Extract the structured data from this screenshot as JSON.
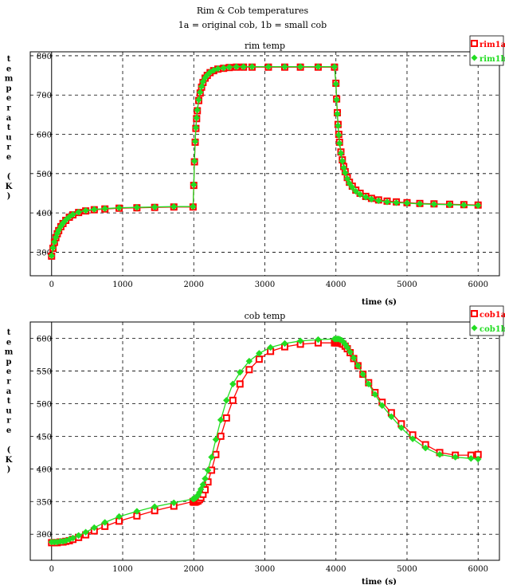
{
  "figure": {
    "title": "Rim & Cob temperatures",
    "subtitle": "1a = original cob, 1b = small cob"
  },
  "colors": {
    "series_a": "#ff0000",
    "series_b": "#22dd22",
    "grid": "#000000"
  },
  "chart_data": [
    {
      "type": "line",
      "title": "rim temp",
      "xlabel": "time (s)",
      "ylabel": "temperature (K)",
      "xlim": [
        -300,
        6300
      ],
      "ylim": [
        240,
        810
      ],
      "xticks": [
        0,
        1000,
        2000,
        3000,
        4000,
        5000,
        6000
      ],
      "yticks": [
        300,
        400,
        500,
        600,
        700,
        800
      ],
      "grid": true,
      "legend": "top-right",
      "series": [
        {
          "name": "rim1a",
          "x": [
            0,
            20,
            40,
            60,
            80,
            100,
            130,
            160,
            200,
            250,
            300,
            380,
            480,
            600,
            750,
            950,
            1200,
            1450,
            1720,
            1990,
            2000,
            2010,
            2020,
            2030,
            2040,
            2050,
            2070,
            2090,
            2110,
            2130,
            2160,
            2190,
            2230,
            2280,
            2340,
            2420,
            2500,
            2600,
            2700,
            2820,
            3050,
            3280,
            3500,
            3750,
            3980,
            4000,
            4010,
            4020,
            4030,
            4040,
            4050,
            4070,
            4090,
            4110,
            4130,
            4160,
            4190,
            4230,
            4280,
            4340,
            4420,
            4500,
            4600,
            4720,
            4850,
            5000,
            5180,
            5380,
            5600,
            5800,
            6000
          ],
          "y": [
            290,
            310,
            325,
            337,
            347,
            355,
            365,
            373,
            381,
            389,
            395,
            401,
            405,
            408,
            410,
            412,
            413,
            414,
            415,
            415,
            470,
            530,
            580,
            615,
            640,
            660,
            686,
            705,
            720,
            732,
            743,
            750,
            757,
            762,
            766,
            768,
            770,
            771,
            771,
            771,
            771,
            771,
            771,
            771,
            771,
            730,
            690,
            655,
            625,
            600,
            580,
            555,
            535,
            518,
            505,
            490,
            478,
            468,
            458,
            450,
            442,
            437,
            433,
            430,
            428,
            426,
            424,
            423,
            422,
            421,
            420
          ]
        },
        {
          "name": "rim1b",
          "x": [
            0,
            20,
            40,
            60,
            80,
            100,
            130,
            160,
            200,
            250,
            300,
            380,
            480,
            600,
            750,
            950,
            1200,
            1450,
            1720,
            1990,
            2000,
            2010,
            2020,
            2030,
            2040,
            2050,
            2070,
            2090,
            2110,
            2130,
            2160,
            2190,
            2230,
            2280,
            2340,
            2420,
            2500,
            2600,
            2700,
            2820,
            3050,
            3280,
            3500,
            3750,
            3980,
            4000,
            4010,
            4020,
            4030,
            4040,
            4050,
            4070,
            4090,
            4110,
            4130,
            4160,
            4190,
            4230,
            4280,
            4340,
            4420,
            4500,
            4600,
            4720,
            4850,
            5000,
            5180,
            5380,
            5600,
            5800,
            6000
          ],
          "y": [
            291,
            311,
            326,
            338,
            348,
            356,
            366,
            374,
            382,
            390,
            396,
            402,
            406,
            409,
            411,
            413,
            414,
            415,
            416,
            416,
            472,
            532,
            582,
            617,
            642,
            662,
            688,
            707,
            722,
            734,
            744,
            751,
            758,
            763,
            767,
            769,
            771,
            772,
            772,
            772,
            772,
            772,
            772,
            772,
            772,
            728,
            688,
            652,
            622,
            598,
            577,
            552,
            532,
            515,
            502,
            487,
            475,
            465,
            455,
            447,
            440,
            435,
            431,
            428,
            426,
            425,
            423,
            422,
            421,
            420,
            419
          ]
        }
      ]
    },
    {
      "type": "line",
      "title": "cob temp",
      "xlabel": "time (s)",
      "ylabel": "temperature (K)",
      "xlim": [
        -300,
        6300
      ],
      "ylim": [
        260,
        625
      ],
      "xticks": [
        0,
        1000,
        2000,
        3000,
        4000,
        5000,
        6000
      ],
      "yticks": [
        300,
        350,
        400,
        450,
        500,
        550,
        600
      ],
      "grid": true,
      "legend": "top-right",
      "series": [
        {
          "name": "cob1a",
          "x": [
            0,
            40,
            80,
            120,
            160,
            200,
            250,
            300,
            380,
            480,
            600,
            750,
            950,
            1200,
            1450,
            1720,
            1990,
            2000,
            2020,
            2040,
            2060,
            2080,
            2100,
            2130,
            2160,
            2200,
            2250,
            2310,
            2380,
            2460,
            2550,
            2650,
            2780,
            2920,
            3080,
            3280,
            3500,
            3750,
            3980,
            4000,
            4020,
            4040,
            4060,
            4080,
            4100,
            4130,
            4160,
            4200,
            4250,
            4310,
            4380,
            4460,
            4550,
            4650,
            4780,
            4920,
            5080,
            5260,
            5460,
            5680,
            5900,
            6000
          ],
          "y": [
            287,
            287,
            287,
            288,
            288,
            289,
            290,
            292,
            295,
            299,
            305,
            312,
            320,
            328,
            336,
            343,
            350,
            349,
            349,
            350,
            351,
            353,
            356,
            361,
            368,
            380,
            398,
            422,
            450,
            478,
            505,
            530,
            552,
            568,
            580,
            587,
            591,
            593,
            593,
            593,
            593,
            593,
            593,
            592,
            591,
            588,
            584,
            578,
            569,
            558,
            545,
            532,
            517,
            502,
            486,
            469,
            452,
            437,
            425,
            421,
            421,
            422
          ]
        },
        {
          "name": "cob1b",
          "x": [
            0,
            40,
            80,
            120,
            160,
            200,
            250,
            300,
            380,
            480,
            600,
            750,
            950,
            1200,
            1450,
            1720,
            1990,
            2000,
            2020,
            2040,
            2060,
            2080,
            2100,
            2130,
            2160,
            2200,
            2250,
            2310,
            2380,
            2460,
            2550,
            2650,
            2780,
            2920,
            3080,
            3280,
            3500,
            3750,
            3980,
            4000,
            4020,
            4040,
            4060,
            4080,
            4100,
            4130,
            4160,
            4200,
            4250,
            4310,
            4380,
            4460,
            4550,
            4650,
            4780,
            4920,
            5080,
            5260,
            5460,
            5680,
            5900,
            6000
          ],
          "y": [
            288,
            288,
            288,
            289,
            289,
            290,
            292,
            294,
            298,
            303,
            310,
            318,
            327,
            335,
            342,
            348,
            354,
            354,
            355,
            357,
            360,
            364,
            369,
            376,
            385,
            398,
            418,
            445,
            475,
            505,
            530,
            548,
            565,
            577,
            586,
            592,
            596,
            598,
            599,
            599,
            599,
            599,
            598,
            597,
            595,
            591,
            586,
            579,
            570,
            558,
            545,
            530,
            514,
            497,
            480,
            463,
            446,
            432,
            422,
            418,
            416,
            415
          ]
        }
      ]
    }
  ]
}
